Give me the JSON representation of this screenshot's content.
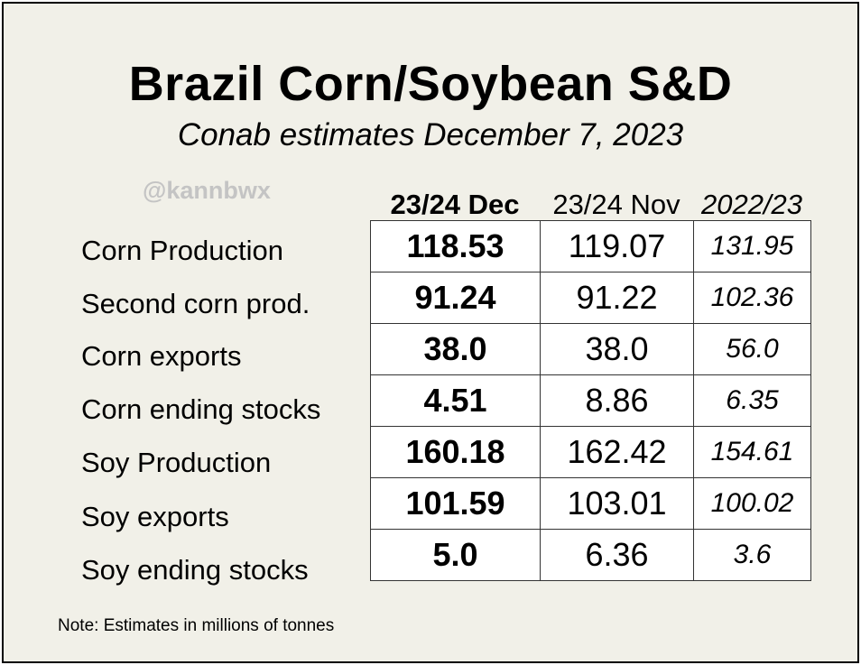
{
  "title": "Brazil Corn/Soybean S&D",
  "subtitle": "Conab estimates December 7, 2023",
  "watermark": "@kannbwx",
  "columns": [
    "23/24 Dec",
    "23/24 Nov",
    "2022/23"
  ],
  "rows": [
    {
      "label": "Corn Production",
      "values": [
        "118.53",
        "119.07",
        "131.95"
      ]
    },
    {
      "label": "Second corn prod.",
      "values": [
        "91.24",
        "91.22",
        "102.36"
      ]
    },
    {
      "label": "Corn exports",
      "values": [
        "38.0",
        "38.0",
        "56.0"
      ]
    },
    {
      "label": "Corn ending stocks",
      "values": [
        "4.51",
        "8.86",
        "6.35"
      ]
    },
    {
      "label": "Soy Production",
      "values": [
        "160.18",
        "162.42",
        "154.61"
      ]
    },
    {
      "label": "Soy exports",
      "values": [
        "101.59",
        "103.01",
        "100.02"
      ]
    },
    {
      "label": "Soy ending stocks",
      "values": [
        "5.0",
        "6.36",
        "3.6"
      ]
    }
  ],
  "note": "Note: Estimates in millions of tonnes"
}
